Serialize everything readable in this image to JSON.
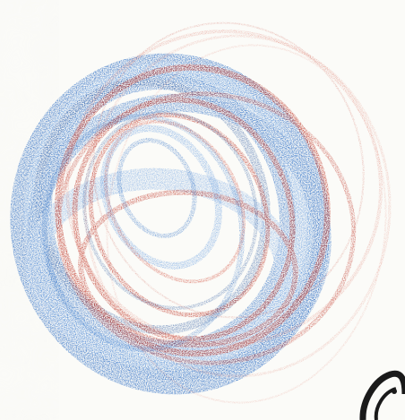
{
  "image": {
    "subject": "scribble-swirl-drawing",
    "colors": {
      "paper": "#fbfbf8",
      "paper_shadow": "#e8e8e2",
      "blue": "#2f6fc4",
      "blue_light": "#6a9fe0",
      "blue_dark": "#1f4f9a",
      "red": "#c0392b",
      "red_light": "#d96a5a",
      "dark_stroke": "#1a1a1a"
    }
  }
}
